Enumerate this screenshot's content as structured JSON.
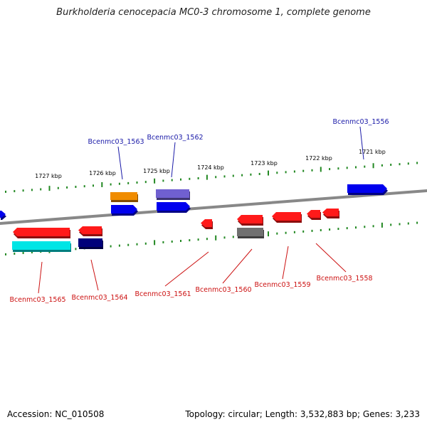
{
  "title": "Burkholderia cenocepacia MC0-3 chromosome 1, complete genome",
  "footer": {
    "accession": "Accession: NC_010508",
    "topology": "Topology: circular; Length: 3,532,883 bp; Genes: 3,233"
  },
  "colors": {
    "backbone": "#888888",
    "upper_ticks": "#228822",
    "forward_label": "#1a1aa8",
    "reverse_label": "#cc1111",
    "red": "#ff1a1a",
    "blue": "#0000ee",
    "orange": "#f08c00",
    "purple": "#7060d0",
    "gray": "#707070",
    "cyan": "#00e5e5",
    "navy": "#00007a"
  },
  "scale": [
    {
      "label": "1727 kbp"
    },
    {
      "label": "1726 kbp"
    },
    {
      "label": "1725 kbp"
    },
    {
      "label": "1724 kbp"
    },
    {
      "label": "1723 kbp"
    },
    {
      "label": "1722 kbp"
    },
    {
      "label": "1721 kbp"
    }
  ],
  "genes": [
    {
      "label": "Bcenmc03_1563",
      "strand": "+"
    },
    {
      "label": "Bcenmc03_1562",
      "strand": "+"
    },
    {
      "label": "Bcenmc03_1556",
      "strand": "+"
    },
    {
      "label": "Bcenmc03_1565",
      "strand": "-"
    },
    {
      "label": "Bcenmc03_1564",
      "strand": "-"
    },
    {
      "label": "Bcenmc03_1561",
      "strand": "-"
    },
    {
      "label": "Bcenmc03_1560",
      "strand": "-"
    },
    {
      "label": "Bcenmc03_1559",
      "strand": "-"
    },
    {
      "label": "Bcenmc03_1558",
      "strand": "-"
    }
  ]
}
